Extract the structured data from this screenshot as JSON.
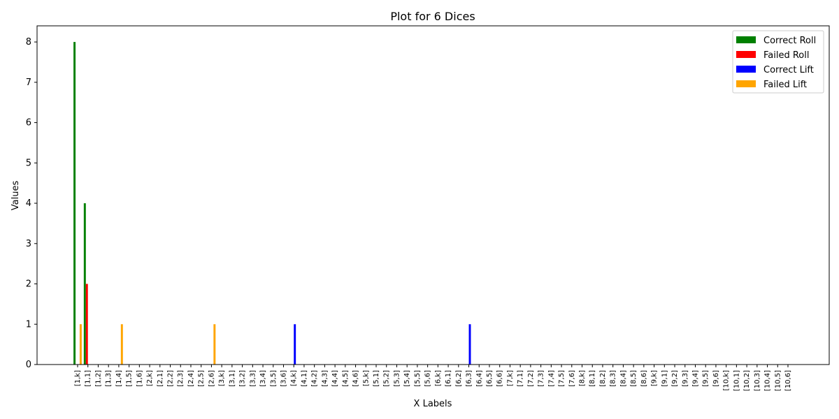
{
  "chart_data": {
    "type": "bar",
    "title": "Plot for 6 Dices",
    "xlabel": "X Labels",
    "ylabel": "Values",
    "ylim": [
      0,
      8.4
    ],
    "yticks": [
      "0",
      "1",
      "2",
      "3",
      "4",
      "5",
      "6",
      "7",
      "8"
    ],
    "legend_position": "top-right",
    "categories": [
      "[1,k]",
      "[1,1]",
      "[1,2]",
      "[1,3]",
      "[1,4]",
      "[1,5]",
      "[1,6]",
      "[2,k]",
      "[2,1]",
      "[2,2]",
      "[2,3]",
      "[2,4]",
      "[2,5]",
      "[2,6]",
      "[3,k]",
      "[3,1]",
      "[3,2]",
      "[3,3]",
      "[3,4]",
      "[3,5]",
      "[3,6]",
      "[4,k]",
      "[4,1]",
      "[4,2]",
      "[4,3]",
      "[4,4]",
      "[4,5]",
      "[4,6]",
      "[5,k]",
      "[5,1]",
      "[5,2]",
      "[5,3]",
      "[5,4]",
      "[5,5]",
      "[5,6]",
      "[6,k]",
      "[6,1]",
      "[6,2]",
      "[6,3]",
      "[6,4]",
      "[6,5]",
      "[6,6]",
      "[7,k]",
      "[7,1]",
      "[7,2]",
      "[7,3]",
      "[7,4]",
      "[7,5]",
      "[7,6]",
      "[8,k]",
      "[8,1]",
      "[8,2]",
      "[8,3]",
      "[8,4]",
      "[8,5]",
      "[8,6]",
      "[9,k]",
      "[9,1]",
      "[9,2]",
      "[9,3]",
      "[9,4]",
      "[9,5]",
      "[9,6]",
      "[10,k]",
      "[10,1]",
      "[10,2]",
      "[10,3]",
      "[10,4]",
      "[10,5]",
      "[10,6]"
    ],
    "series": [
      {
        "name": "Correct Roll",
        "color": "#008000",
        "values": [
          8,
          4,
          0,
          0,
          0,
          0,
          0,
          0,
          0,
          0,
          0,
          0,
          0,
          0,
          0,
          0,
          0,
          0,
          0,
          0,
          0,
          0,
          0,
          0,
          0,
          0,
          0,
          0,
          0,
          0,
          0,
          0,
          0,
          0,
          0,
          0,
          0,
          0,
          0,
          0,
          0,
          0,
          0,
          0,
          0,
          0,
          0,
          0,
          0,
          0,
          0,
          0,
          0,
          0,
          0,
          0,
          0,
          0,
          0,
          0,
          0,
          0,
          0,
          0,
          0,
          0,
          0,
          0,
          0,
          0
        ]
      },
      {
        "name": "Failed Roll",
        "color": "#ff0000",
        "values": [
          0,
          2,
          0,
          0,
          0,
          0,
          0,
          0,
          0,
          0,
          0,
          0,
          0,
          0,
          0,
          0,
          0,
          0,
          0,
          0,
          0,
          0,
          0,
          0,
          0,
          0,
          0,
          0,
          0,
          0,
          0,
          0,
          0,
          0,
          0,
          0,
          0,
          0,
          0,
          0,
          0,
          0,
          0,
          0,
          0,
          0,
          0,
          0,
          0,
          0,
          0,
          0,
          0,
          0,
          0,
          0,
          0,
          0,
          0,
          0,
          0,
          0,
          0,
          0,
          0,
          0,
          0,
          0,
          0,
          0
        ]
      },
      {
        "name": "Correct Lift",
        "color": "#0000ff",
        "values": [
          0,
          0,
          0,
          0,
          0,
          0,
          0,
          0,
          0,
          0,
          0,
          0,
          0,
          0,
          0,
          0,
          0,
          0,
          0,
          0,
          0,
          1,
          0,
          0,
          0,
          0,
          0,
          0,
          0,
          0,
          0,
          0,
          0,
          0,
          0,
          0,
          0,
          0,
          1,
          0,
          0,
          0,
          0,
          0,
          0,
          0,
          0,
          0,
          0,
          0,
          0,
          0,
          0,
          0,
          0,
          0,
          0,
          0,
          0,
          0,
          0,
          0,
          0,
          0,
          0,
          0,
          0,
          0,
          0,
          0
        ]
      },
      {
        "name": "Failed Lift",
        "color": "#ffa500",
        "values": [
          1,
          0,
          0,
          0,
          1,
          0,
          0,
          0,
          0,
          0,
          0,
          0,
          0,
          1,
          0,
          0,
          0,
          0,
          0,
          0,
          0,
          0,
          0,
          0,
          0,
          0,
          0,
          0,
          0,
          0,
          0,
          0,
          0,
          0,
          0,
          0,
          0,
          0,
          0,
          0,
          0,
          0,
          0,
          0,
          0,
          0,
          0,
          0,
          0,
          0,
          0,
          0,
          0,
          0,
          0,
          0,
          0,
          0,
          0,
          0,
          0,
          0,
          0,
          0,
          0,
          0,
          0,
          0,
          0,
          0
        ]
      }
    ]
  }
}
